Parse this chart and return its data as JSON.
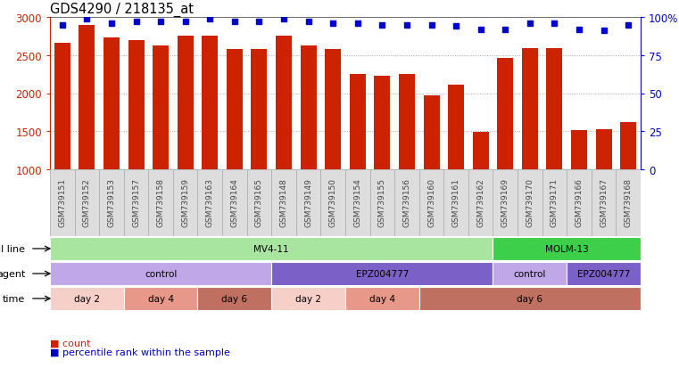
{
  "title": "GDS4290 / 218135_at",
  "samples": [
    "GSM739151",
    "GSM739152",
    "GSM739153",
    "GSM739157",
    "GSM739158",
    "GSM739159",
    "GSM739163",
    "GSM739164",
    "GSM739165",
    "GSM739148",
    "GSM739149",
    "GSM739150",
    "GSM739154",
    "GSM739155",
    "GSM739156",
    "GSM739160",
    "GSM739161",
    "GSM739162",
    "GSM739169",
    "GSM739170",
    "GSM739171",
    "GSM739166",
    "GSM739167",
    "GSM739168"
  ],
  "counts": [
    2660,
    2900,
    2730,
    2700,
    2620,
    2750,
    2750,
    2580,
    2580,
    2750,
    2620,
    2580,
    2250,
    2230,
    2250,
    1970,
    2110,
    1490,
    2460,
    2590,
    2590,
    1520,
    1530,
    1620
  ],
  "percentile_ranks": [
    95,
    99,
    96,
    97,
    97,
    97,
    99,
    97,
    97,
    99,
    97,
    96,
    96,
    95,
    95,
    95,
    94,
    92,
    92,
    96,
    96,
    92,
    91,
    95
  ],
  "bar_color": "#cc2200",
  "dot_color": "#0000cc",
  "ylim_left": [
    1000,
    3000
  ],
  "ylim_right": [
    0,
    100
  ],
  "yticks_left": [
    1000,
    1500,
    2000,
    2500,
    3000
  ],
  "yticks_right": [
    0,
    25,
    50,
    75,
    100
  ],
  "grid_yticks": [
    1500,
    2000,
    2500
  ],
  "cell_line_segments": [
    {
      "text": "MV4-11",
      "start": 0,
      "end": 18,
      "color": "#a8e6a0"
    },
    {
      "text": "MOLM-13",
      "start": 18,
      "end": 24,
      "color": "#3ecf4a"
    }
  ],
  "agent_segments": [
    {
      "text": "control",
      "start": 0,
      "end": 9,
      "color": "#c0a8e8"
    },
    {
      "text": "EPZ004777",
      "start": 9,
      "end": 18,
      "color": "#7b60c8"
    },
    {
      "text": "control",
      "start": 18,
      "end": 21,
      "color": "#c0a8e8"
    },
    {
      "text": "EPZ004777",
      "start": 21,
      "end": 24,
      "color": "#7b60c8"
    }
  ],
  "time_segments": [
    {
      "text": "day 2",
      "start": 0,
      "end": 3,
      "color": "#f5cfc8"
    },
    {
      "text": "day 4",
      "start": 3,
      "end": 6,
      "color": "#e89888"
    },
    {
      "text": "day 6",
      "start": 6,
      "end": 9,
      "color": "#c07060"
    },
    {
      "text": "day 2",
      "start": 9,
      "end": 12,
      "color": "#f5cfc8"
    },
    {
      "text": "day 4",
      "start": 12,
      "end": 15,
      "color": "#e89888"
    },
    {
      "text": "day 6",
      "start": 15,
      "end": 24,
      "color": "#c07060"
    }
  ],
  "xtick_bg_color": "#cccccc",
  "xtick_cell_color": "#dddddd",
  "legend": [
    {
      "label": "count",
      "color": "#cc2200"
    },
    {
      "label": "percentile rank within the sample",
      "color": "#0000cc"
    }
  ]
}
